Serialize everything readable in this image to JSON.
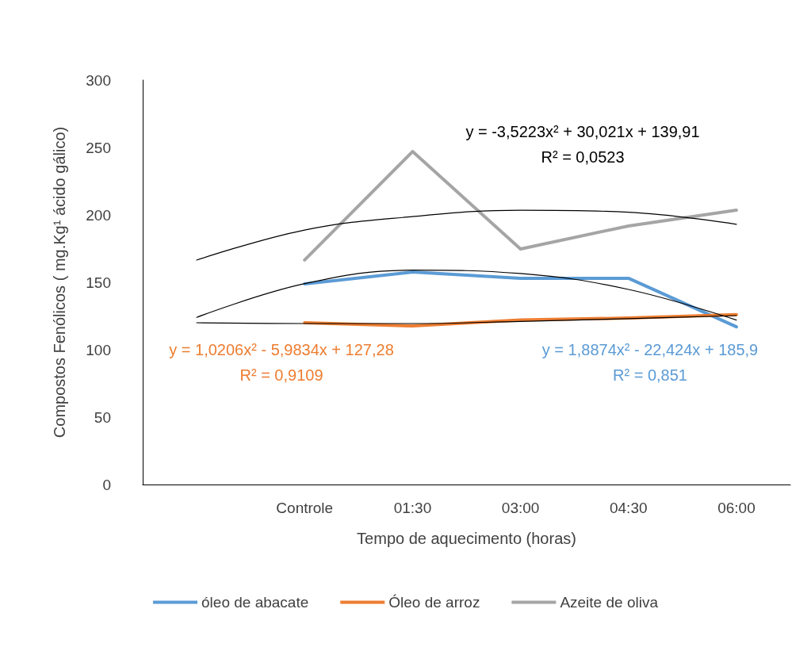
{
  "chart_data": {
    "type": "line",
    "xlabel": "Tempo de aquecimento (horas)",
    "ylabel": "Compostos Fenólicos ( mg.Kg¹ ácido gálico)",
    "categories": [
      null,
      "Controle",
      "01:30",
      "03:00",
      "04:30",
      "06:00"
    ],
    "ylim": [
      0,
      300
    ],
    "yticks": [
      0,
      50,
      100,
      150,
      200,
      250,
      300
    ],
    "grid": false,
    "legend": "bottom",
    "marker": "none",
    "line_style": "solid",
    "series": [
      {
        "name": "óleo de abacate",
        "color": "#5b9bd5",
        "values": [
          null,
          148.8,
          157.6,
          153,
          153,
          117
        ]
      },
      {
        "name": "Óleo de arroz",
        "color": "#ed7d31",
        "values": [
          null,
          120,
          117.6,
          122,
          123.5,
          126
        ]
      },
      {
        "name": "Azeite de oliva",
        "color": "#a5a5a5",
        "values": [
          null,
          166.5,
          247,
          174.7,
          191.8,
          203.5
        ]
      },
      {
        "color": "#000000",
        "values": [
          124,
          149,
          159,
          156.5,
          144.7,
          122
        ]
      },
      {
        "color": "#000000",
        "values": [
          120,
          119.4,
          119.4,
          121,
          123,
          125.3
        ]
      },
      {
        "color": "#000000",
        "values": [
          166.5,
          188.8,
          198.8,
          203.5,
          202,
          193
        ]
      }
    ],
    "annotations": [
      "y = -3,5223x² + 30,021x + 139,91\nR² = 0,0523",
      "y = 1,0206x² - 5,9834x + 127,28\nR² = 0,9109",
      "y = 1,8874x² - 22,424x + 185,9\nR² = 0,851"
    ]
  }
}
